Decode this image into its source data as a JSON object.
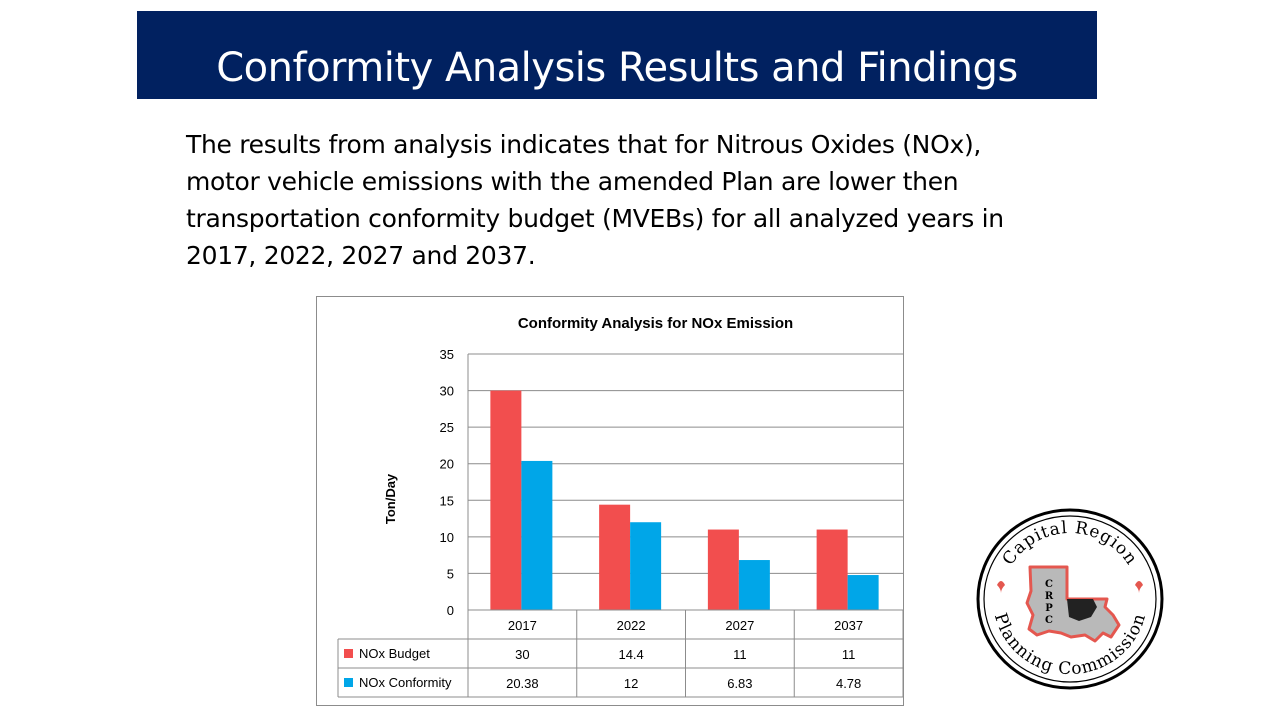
{
  "slide": {
    "title": "Conformity Analysis Results and Findings",
    "body_lines": [
      "The results from analysis indicates that for Nitrous Oxides (NOx),",
      "motor vehicle emissions with the amended Plan are lower then",
      "transportation conformity budget (MVEBs) for all analyzed years in",
      "2017, 2022, 2027 and 2037."
    ]
  },
  "colors": {
    "title_bar": "#012160",
    "budget": "#f24e4e",
    "conformity": "#00a6e8"
  },
  "chart_data": {
    "type": "bar",
    "title": "Conformity Analysis for NOx Emission",
    "ylabel": "Ton/Day",
    "xlabel": "",
    "ylim": [
      0,
      35
    ],
    "yticks": [
      "0",
      "5",
      "10",
      "15",
      "20",
      "25",
      "30",
      "35"
    ],
    "grid": true,
    "legend": "data table below chart",
    "categories": [
      "2017",
      "2022",
      "2027",
      "2037"
    ],
    "series": [
      {
        "name": "NOx Budget",
        "values": [
          30,
          14.4,
          11,
          11
        ],
        "labels": [
          "30",
          "14.4",
          "11",
          "11"
        ]
      },
      {
        "name": "NOx Conformity",
        "values": [
          20.38,
          12,
          6.83,
          4.78
        ],
        "labels": [
          "20.38",
          "12",
          "6.83",
          "4.78"
        ]
      }
    ]
  },
  "logo": {
    "top_text": "Capital Region",
    "bottom_text": "Planning Commission",
    "center_text": [
      "C",
      "R",
      "P",
      "C"
    ]
  }
}
